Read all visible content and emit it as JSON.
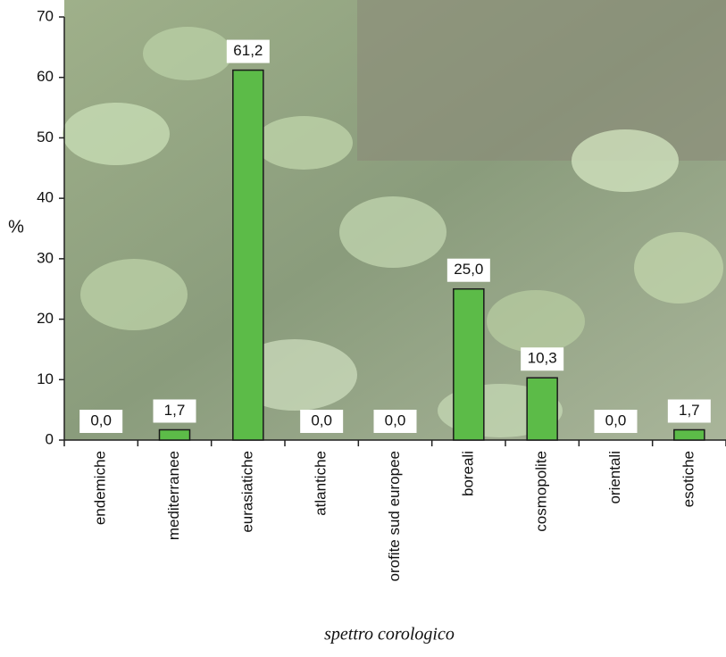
{
  "chart_data": {
    "type": "bar",
    "xlabel": "spettro corologico",
    "ylabel": "%",
    "categories": [
      "endemiche",
      "mediterranee",
      "eurasiatiche",
      "atlantiche",
      "orofite sud europee",
      "boreali",
      "cosmopolite",
      "orientali",
      "esotiche"
    ],
    "values": [
      0,
      1.7,
      61.2,
      0,
      0,
      25,
      10.3,
      0,
      1.7
    ],
    "value_labels": [
      "0,0",
      "1,7",
      "61,2",
      "0,0",
      "0,0",
      "25,0",
      "10,3",
      "0,0",
      "1,7"
    ],
    "color": "#5cbb48",
    "ylim": [
      0,
      70
    ],
    "yticks": [
      0,
      10,
      20,
      30,
      40,
      50,
      60,
      70
    ]
  }
}
